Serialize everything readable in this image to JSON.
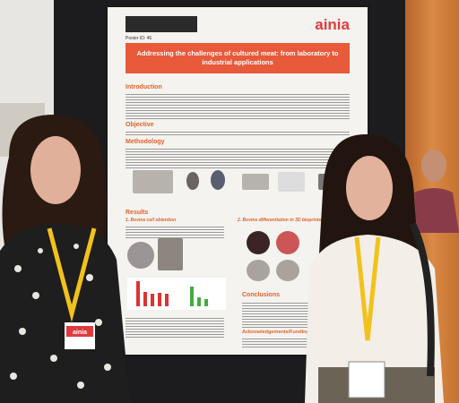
{
  "poster": {
    "logo": "ainia",
    "id": "Poster ID: 46",
    "title": "Addressing the challenges of cultured meat: from laboratory to industrial applications",
    "sections": [
      "Introduction",
      "Objective",
      "Methodology",
      "Results",
      "Conclusions",
      "Acknowledgements/Funding"
    ],
    "subsections": [
      "1. Bovine cell obtention",
      "2. Bovine differentiation in 3D bioprinted constructs"
    ]
  },
  "badge": "ainia"
}
